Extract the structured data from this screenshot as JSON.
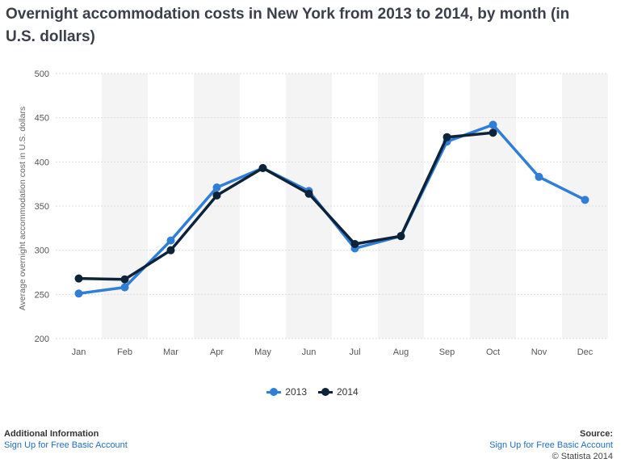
{
  "title": "Overnight accommodation costs in New York from 2013 to 2014, by month (in U.S. dollars)",
  "colors": {
    "series_2013": "#2f7ed8",
    "series_2014": "#0d233a",
    "band": "#f4f4f4",
    "grid": "#dddddd",
    "axis_text": "#555555",
    "link": "#1f6fc5"
  },
  "chart_data": {
    "type": "line",
    "title": "Overnight accommodation costs in New York from 2013 to 2014, by month (in U.S. dollars)",
    "xlabel": "",
    "ylabel": "Average overnight accommodation cost in U.S. dollars",
    "ylim": [
      200,
      500
    ],
    "yticks": [
      200,
      250,
      300,
      350,
      400,
      450,
      500
    ],
    "grid": true,
    "legend_position": "bottom",
    "categories": [
      "Jan",
      "Feb",
      "Mar",
      "Apr",
      "May",
      "Jun",
      "Jul",
      "Aug",
      "Sep",
      "Oct",
      "Nov",
      "Dec"
    ],
    "series": [
      {
        "name": "2013",
        "values": [
          251,
          258,
          311,
          371,
          393,
          367,
          302,
          316,
          423,
          442,
          383,
          357
        ]
      },
      {
        "name": "2014",
        "values": [
          268,
          267,
          300,
          362,
          393,
          364,
          307,
          316,
          428,
          433,
          null,
          null
        ]
      }
    ]
  },
  "footer": {
    "left_heading": "Additional Information",
    "left_link": "Sign Up for Free Basic Account",
    "right_heading": "Source:",
    "right_link": "Sign Up for Free Basic Account",
    "copyright": "© Statista 2014"
  }
}
